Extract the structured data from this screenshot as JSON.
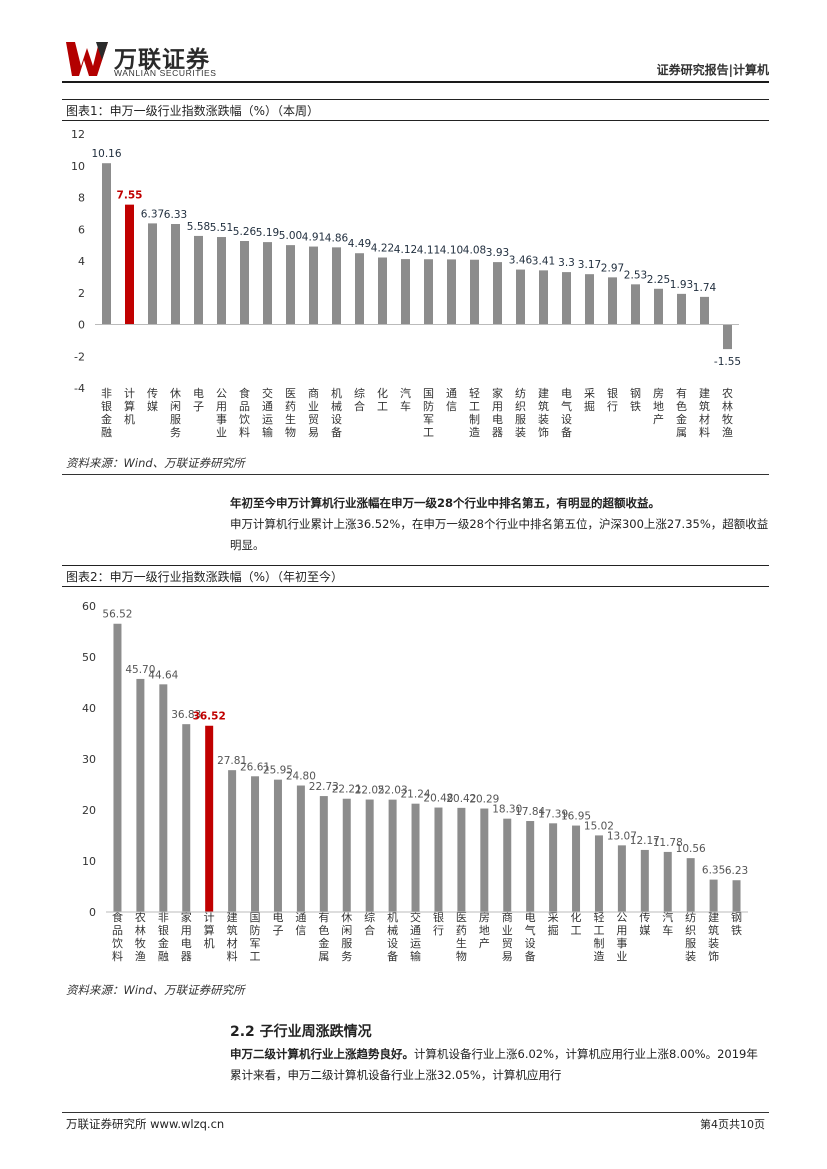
{
  "header": {
    "logo_cn": "万联证券",
    "logo_en": "WANLIAN SECURITIES",
    "report_label": "证券研究报告|计算机"
  },
  "figure1": {
    "title": "图表1：申万一级行业指数涨跌幅（%）（本周）",
    "source": "资料来源：Wind、万联证券研究所"
  },
  "figure2": {
    "title": "图表2：申万一级行业指数涨跌幅（%）（年初至今）",
    "source": "资料来源：Wind、万联证券研究所"
  },
  "body": {
    "p1_bold": "年初至今申万计算机行业涨幅在申万一级28个行业中排名第五，有明显的超额收益。",
    "p1_text": "申万计算机行业累计上涨36.52%，在申万一级28个行业中排名第五位，沪深300上涨27.35%，超额收益明显。",
    "section_title": "2.2 子行业周涨跌情况",
    "p2_bold": "申万二级计算机行业上涨趋势良好。",
    "p2_text": "计算机设备行业上涨6.02%，计算机应用行业上涨8.00%。2019年累计来看，申万二级计算机设备行业上涨32.05%，计算机应用行"
  },
  "footer": {
    "left": "万联证券研究所 www.wlzq.cn",
    "right": "第4页共10页"
  },
  "colors": {
    "bar": "#8c8c8c",
    "highlight": "#c00000"
  },
  "chart_data": [
    {
      "type": "bar",
      "title": "图表1：申万一级行业指数涨跌幅（%）（本周）",
      "ylim": [
        -4,
        12
      ],
      "yticks": [
        -4,
        -2,
        0,
        2,
        4,
        6,
        8,
        10,
        12
      ],
      "highlight": "计算机",
      "categories": [
        "非银金融",
        "计算机",
        "传媒",
        "休闲服务",
        "电子",
        "公用事业",
        "食品饮料",
        "交通运输",
        "医药生物",
        "商业贸易",
        "机械设备",
        "综合",
        "化工",
        "汽车",
        "国防军工",
        "通信",
        "轻工制造",
        "家用电器",
        "纺织服装",
        "建筑装饰",
        "电气设备",
        "采掘",
        "银行",
        "钢铁",
        "房地产",
        "有色金属",
        "建筑材料",
        "农林牧渔"
      ],
      "values": [
        10.16,
        7.55,
        6.37,
        6.33,
        5.58,
        5.51,
        5.26,
        5.19,
        5.0,
        4.91,
        4.86,
        4.49,
        4.22,
        4.12,
        4.11,
        4.1,
        4.08,
        3.93,
        3.46,
        3.41,
        3.3,
        3.17,
        2.97,
        2.53,
        2.25,
        1.93,
        1.74,
        -1.55
      ],
      "labels": [
        "10.16",
        "7.55",
        "6.37",
        "6.33",
        "5.58",
        "5.51",
        "5.26",
        "5.19",
        "5.00",
        "4.91",
        "4.86",
        "4.49",
        "4.22",
        "4.12",
        "4.11",
        "4.10",
        "4.08",
        "3.93",
        "3.46",
        "3.41",
        "3.3",
        "3.17",
        "2.97",
        "2.53",
        "2.25",
        "1.93",
        "1.74",
        "-1.55"
      ]
    },
    {
      "type": "bar",
      "title": "图表2：申万一级行业指数涨跌幅（%）（年初至今）",
      "ylim": [
        0,
        60
      ],
      "yticks": [
        0,
        10,
        20,
        30,
        40,
        50,
        60
      ],
      "highlight": "计算机",
      "categories": [
        "食品饮料",
        "农林牧渔",
        "非银金融",
        "家用电器",
        "计算机",
        "建筑材料",
        "国防军工",
        "电子",
        "通信",
        "有色金属",
        "休闲服务",
        "综合",
        "机械设备",
        "交通运输",
        "银行",
        "医药生物",
        "房地产",
        "商业贸易",
        "电气设备",
        "采掘",
        "化工",
        "轻工制造",
        "公用事业",
        "传媒",
        "汽车",
        "纺织服装",
        "建筑装饰",
        "钢铁"
      ],
      "values": [
        56.52,
        45.7,
        44.64,
        36.83,
        36.52,
        27.81,
        26.61,
        25.95,
        24.8,
        22.73,
        22.21,
        22.05,
        22.03,
        21.24,
        20.48,
        20.42,
        20.29,
        18.3,
        17.84,
        17.39,
        16.95,
        15.02,
        13.07,
        12.17,
        11.78,
        10.56,
        6.35,
        6.23
      ],
      "labels": [
        "56.52",
        "45.70",
        "44.64",
        "36.83",
        "36.52",
        "27.81",
        "26.61",
        "25.95",
        "24.80",
        "22.73",
        "22.21",
        "22.05",
        "22.03",
        "21.24",
        "20.48",
        "20.42",
        "20.29",
        "18.30",
        "17.84",
        "17.39",
        "16.95",
        "15.02",
        "13.07",
        "12.17",
        "11.78",
        "10.56",
        "6.35",
        "6.23"
      ]
    }
  ]
}
